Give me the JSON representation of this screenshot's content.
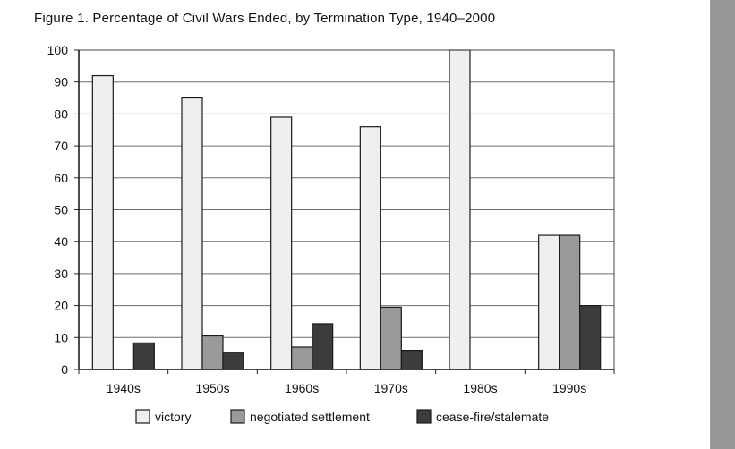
{
  "figure": {
    "title": "Figure 1.  Percentage of Civil Wars Ended, by Termination Type, 1940–2000"
  },
  "chart_data": {
    "type": "bar",
    "title": "Figure 1.  Percentage of Civil Wars Ended, by Termination Type, 1940–2000",
    "xlabel": "",
    "ylabel": "",
    "ylim": [
      0,
      100
    ],
    "yticks": [
      0,
      10,
      20,
      30,
      40,
      50,
      60,
      70,
      80,
      90,
      100
    ],
    "grid": true,
    "legend_position": "bottom",
    "categories": [
      "1940s",
      "1950s",
      "1960s",
      "1970s",
      "1980s",
      "1990s"
    ],
    "series": [
      {
        "name": "victory",
        "color": "#efefef",
        "values": [
          92,
          85,
          79,
          76,
          100,
          42
        ]
      },
      {
        "name": "negotiated settlement",
        "color": "#9a9a9a",
        "values": [
          0,
          10.5,
          7,
          19.5,
          0,
          42
        ]
      },
      {
        "name": "cease-fire/stalemate",
        "color": "#3c3c3c",
        "values": [
          8.3,
          5.4,
          14.3,
          6,
          0,
          20
        ]
      }
    ]
  }
}
